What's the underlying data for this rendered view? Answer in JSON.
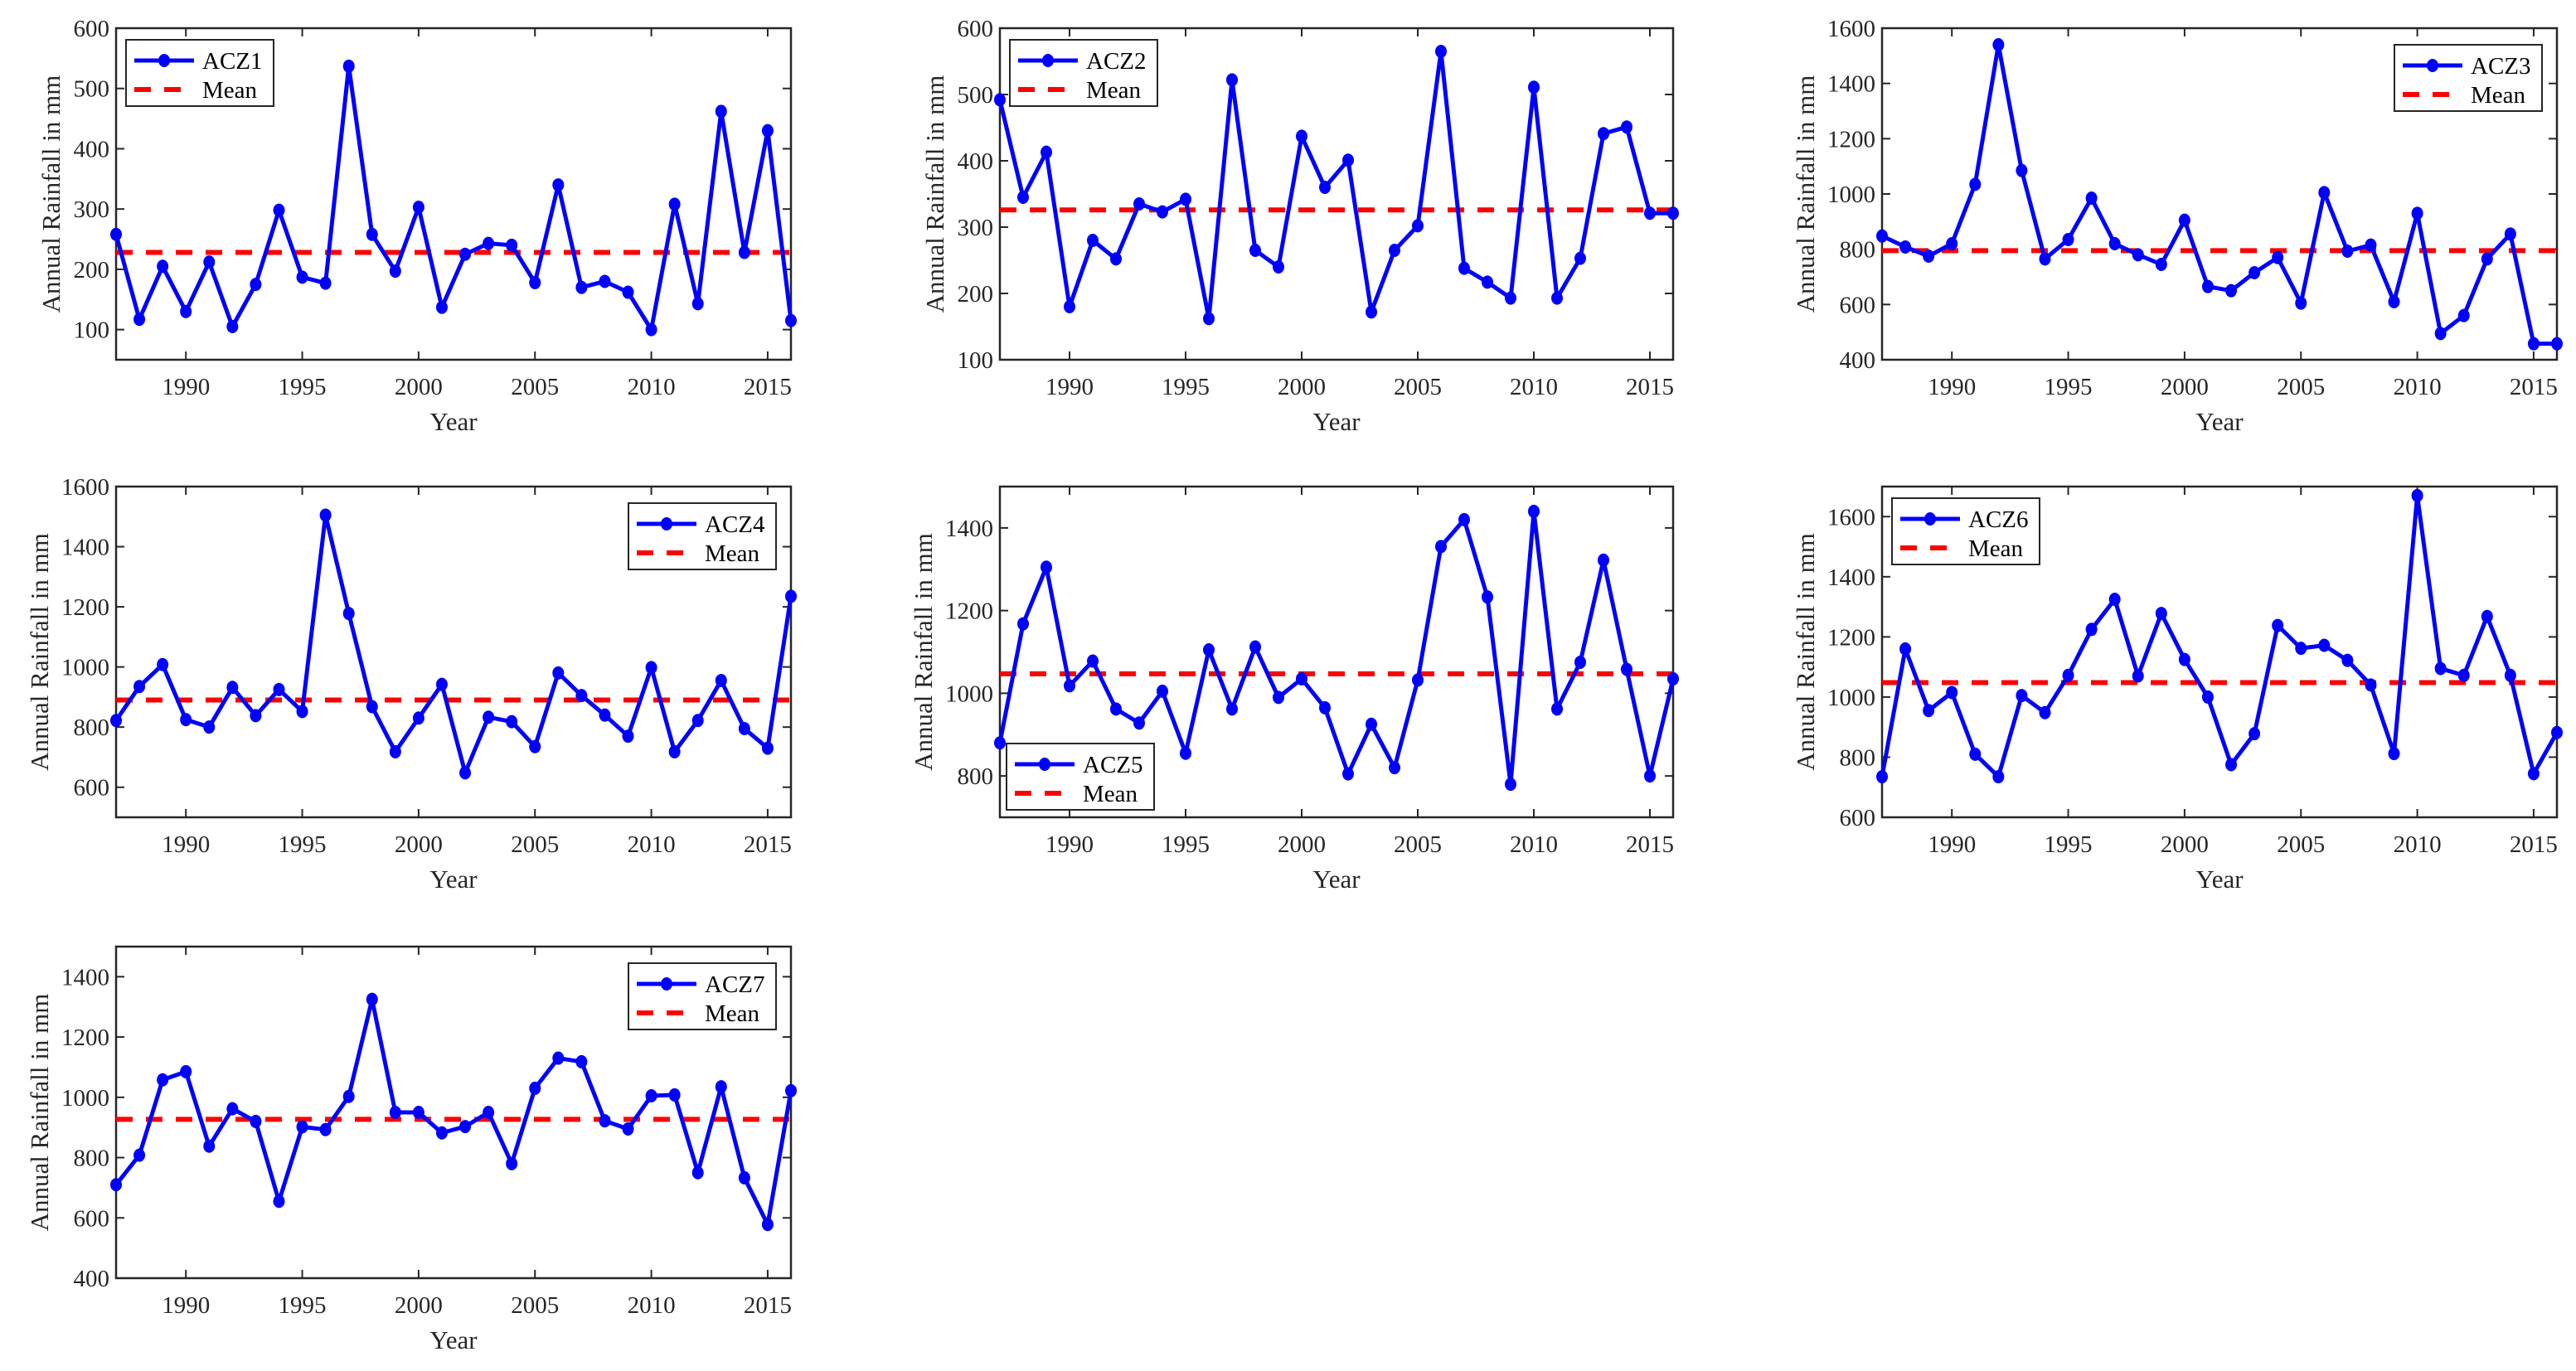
{
  "chart_data": [
    {
      "type": "line",
      "xlabel": "Year",
      "ylabel": "Annual Rainfall in mm",
      "xlim": [
        1987,
        2016
      ],
      "ylim": [
        50,
        600
      ],
      "xticks": [
        1990,
        1995,
        2000,
        2005,
        2010,
        2015
      ],
      "yticks": [
        100,
        200,
        300,
        400,
        500,
        600
      ],
      "legend": "top-left",
      "grid": false,
      "x": [
        1987,
        1988,
        1989,
        1990,
        1991,
        1992,
        1993,
        1994,
        1995,
        1996,
        1997,
        1998,
        1999,
        2000,
        2001,
        2002,
        2003,
        2004,
        2005,
        2006,
        2007,
        2008,
        2009,
        2010,
        2011,
        2012,
        2013,
        2014,
        2015,
        2016
      ],
      "series": [
        {
          "name": "ACZ1",
          "color": "#0000ff",
          "values": [
            258,
            117,
            205,
            130,
            212,
            105,
            175,
            298,
            187,
            177,
            537,
            258,
            197,
            303,
            137,
            225,
            243,
            240,
            178,
            340,
            170,
            180,
            162,
            100,
            308,
            143,
            462,
            228,
            430,
            115
          ]
        },
        {
          "name": "Mean",
          "color": "#ff0000",
          "style": "dashed",
          "value": 228
        }
      ]
    },
    {
      "type": "line",
      "xlabel": "Year",
      "ylabel": "Annual Rainfall in mm",
      "xlim": [
        1987,
        2016
      ],
      "ylim": [
        100,
        600
      ],
      "xticks": [
        1990,
        1995,
        2000,
        2005,
        2010,
        2015
      ],
      "yticks": [
        100,
        200,
        300,
        400,
        500,
        600
      ],
      "legend": "top-left",
      "grid": false,
      "x": [
        1987,
        1988,
        1989,
        1990,
        1991,
        1992,
        1993,
        1994,
        1995,
        1996,
        1997,
        1998,
        1999,
        2000,
        2001,
        2002,
        2003,
        2004,
        2005,
        2006,
        2007,
        2008,
        2009,
        2010,
        2011,
        2012,
        2013,
        2014,
        2015,
        2016
      ],
      "series": [
        {
          "name": "ACZ2",
          "color": "#0000ff",
          "values": [
            492,
            345,
            413,
            180,
            280,
            252,
            335,
            323,
            342,
            162,
            522,
            265,
            240,
            437,
            360,
            401,
            172,
            265,
            302,
            565,
            238,
            217,
            193,
            511,
            193,
            253,
            441,
            451,
            321,
            321
          ]
        },
        {
          "name": "Mean",
          "color": "#ff0000",
          "style": "dashed",
          "value": 326
        }
      ]
    },
    {
      "type": "line",
      "xlabel": "Year",
      "ylabel": "Annual Rainfall in mm",
      "xlim": [
        1987,
        2016
      ],
      "ylim": [
        400,
        1600
      ],
      "xticks": [
        1990,
        1995,
        2000,
        2005,
        2010,
        2015
      ],
      "yticks": [
        400,
        600,
        800,
        1000,
        1200,
        1400,
        1600
      ],
      "legend": "top-right",
      "grid": false,
      "x": [
        1987,
        1988,
        1989,
        1990,
        1991,
        1992,
        1993,
        1994,
        1995,
        1996,
        1997,
        1998,
        1999,
        2000,
        2001,
        2002,
        2003,
        2004,
        2005,
        2006,
        2007,
        2008,
        2009,
        2010,
        2011,
        2012,
        2013,
        2014,
        2015,
        2016
      ],
      "series": [
        {
          "name": "ACZ3",
          "color": "#0000ff",
          "values": [
            848,
            808,
            775,
            820,
            1035,
            1540,
            1085,
            765,
            835,
            985,
            820,
            780,
            745,
            905,
            665,
            650,
            715,
            770,
            605,
            1005,
            793,
            815,
            610,
            930,
            495,
            560,
            765,
            855,
            458,
            458
          ]
        },
        {
          "name": "Mean",
          "color": "#ff0000",
          "style": "dashed",
          "value": 795
        }
      ]
    },
    {
      "type": "line",
      "xlabel": "Year",
      "ylabel": "Annual Rainfall in mm",
      "xlim": [
        1987,
        2016
      ],
      "ylim": [
        500,
        1600
      ],
      "xticks": [
        1990,
        1995,
        2000,
        2005,
        2010,
        2015
      ],
      "yticks": [
        600,
        800,
        1000,
        1200,
        1400,
        1600
      ],
      "legend": "top-right",
      "grid": false,
      "x": [
        1987,
        1988,
        1989,
        1990,
        1991,
        1992,
        1993,
        1994,
        1995,
        1996,
        1997,
        1998,
        1999,
        2000,
        2001,
        2002,
        2003,
        2004,
        2005,
        2006,
        2007,
        2008,
        2009,
        2010,
        2011,
        2012,
        2013,
        2014,
        2015,
        2016
      ],
      "series": [
        {
          "name": "ACZ4",
          "color": "#0000ff",
          "values": [
            822,
            935,
            1008,
            825,
            800,
            932,
            838,
            925,
            852,
            1505,
            1178,
            868,
            718,
            830,
            942,
            648,
            833,
            818,
            735,
            980,
            905,
            840,
            770,
            998,
            718,
            822,
            955,
            795,
            730,
            1235
          ]
        },
        {
          "name": "Mean",
          "color": "#ff0000",
          "style": "dashed",
          "value": 890
        }
      ]
    },
    {
      "type": "line",
      "xlabel": "Year",
      "ylabel": "Annual Rainfall in mm",
      "xlim": [
        1987,
        2016
      ],
      "ylim": [
        700,
        1500
      ],
      "xticks": [
        1990,
        1995,
        2000,
        2005,
        2010,
        2015
      ],
      "yticks": [
        800,
        1000,
        1200,
        1400
      ],
      "legend": "bottom-left",
      "grid": false,
      "x": [
        1987,
        1988,
        1989,
        1990,
        1991,
        1992,
        1993,
        1994,
        1995,
        1996,
        1997,
        1998,
        1999,
        2000,
        2001,
        2002,
        2003,
        2004,
        2005,
        2006,
        2007,
        2008,
        2009,
        2010,
        2011,
        2012,
        2013,
        2014,
        2015,
        2016
      ],
      "series": [
        {
          "name": "ACZ5",
          "color": "#0000ff",
          "values": [
            880,
            1168,
            1305,
            1018,
            1078,
            962,
            928,
            1005,
            855,
            1105,
            962,
            1112,
            990,
            1035,
            965,
            805,
            925,
            820,
            1032,
            1355,
            1420,
            1233,
            780,
            1440,
            962,
            1075,
            1322,
            1058,
            800,
            1035
          ]
        },
        {
          "name": "Mean",
          "color": "#ff0000",
          "style": "dashed",
          "value": 1047
        }
      ]
    },
    {
      "type": "line",
      "xlabel": "Year",
      "ylabel": "Annual Rainfall in mm",
      "xlim": [
        1987,
        2016
      ],
      "ylim": [
        600,
        1700
      ],
      "xticks": [
        1990,
        1995,
        2000,
        2005,
        2010,
        2015
      ],
      "yticks": [
        600,
        800,
        1000,
        1200,
        1400,
        1600
      ],
      "legend": "top-left",
      "grid": false,
      "x": [
        1987,
        1988,
        1989,
        1990,
        1991,
        1992,
        1993,
        1994,
        1995,
        1996,
        1997,
        1998,
        1999,
        2000,
        2001,
        2002,
        2003,
        2004,
        2005,
        2006,
        2007,
        2008,
        2009,
        2010,
        2011,
        2012,
        2013,
        2014,
        2015,
        2016
      ],
      "series": [
        {
          "name": "ACZ6",
          "color": "#0000ff",
          "values": [
            735,
            1160,
            955,
            1015,
            810,
            735,
            1005,
            948,
            1072,
            1225,
            1325,
            1070,
            1278,
            1125,
            1000,
            775,
            878,
            1238,
            1162,
            1172,
            1122,
            1040,
            812,
            1670,
            1095,
            1072,
            1268,
            1072,
            745,
            882
          ]
        },
        {
          "name": "Mean",
          "color": "#ff0000",
          "style": "dashed",
          "value": 1048
        }
      ]
    },
    {
      "type": "line",
      "xlabel": "Year",
      "ylabel": "Annual Rainfall in mm",
      "xlim": [
        1987,
        2016
      ],
      "ylim": [
        400,
        1500
      ],
      "xticks": [
        1990,
        1995,
        2000,
        2005,
        2010,
        2015
      ],
      "yticks": [
        400,
        600,
        800,
        1000,
        1200,
        1400
      ],
      "legend": "top-right",
      "grid": false,
      "x": [
        1987,
        1988,
        1989,
        1990,
        1991,
        1992,
        1993,
        1994,
        1995,
        1996,
        1997,
        1998,
        1999,
        2000,
        2001,
        2002,
        2003,
        2004,
        2005,
        2006,
        2007,
        2008,
        2009,
        2010,
        2011,
        2012,
        2013,
        2014,
        2015,
        2016
      ],
      "series": [
        {
          "name": "ACZ7",
          "color": "#0000ff",
          "values": [
            710,
            808,
            1058,
            1085,
            838,
            962,
            920,
            655,
            902,
            893,
            1003,
            1325,
            950,
            950,
            882,
            903,
            950,
            780,
            1030,
            1130,
            1118,
            922,
            895,
            1005,
            1008,
            750,
            1035,
            733,
            578,
            1022
          ]
        },
        {
          "name": "Mean",
          "color": "#ff0000",
          "style": "dashed",
          "value": 927
        }
      ]
    }
  ]
}
